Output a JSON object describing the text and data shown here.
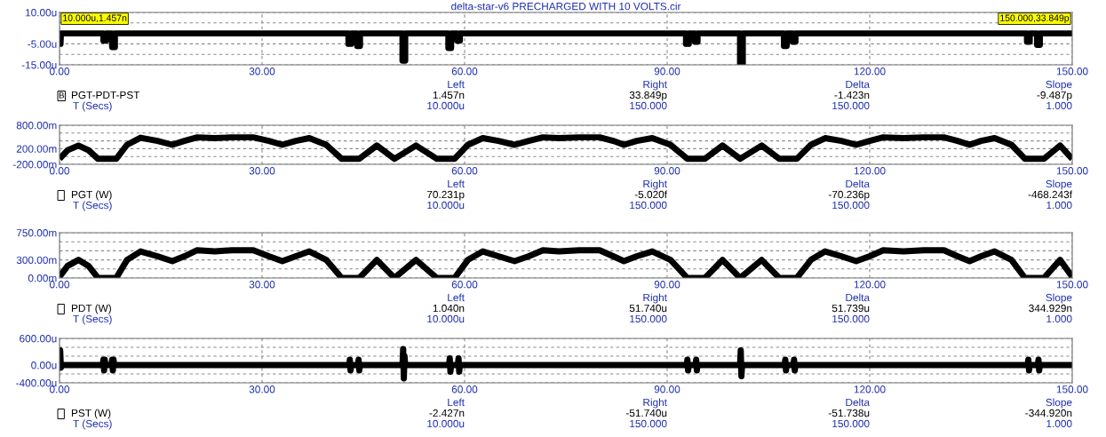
{
  "chart_data": [
    {
      "type": "line",
      "title": "delta-star-v6 PRECHARGED WITH 10 VOLTS.cir",
      "xlim": [
        0,
        150
      ],
      "ylim": [
        -15,
        10
      ],
      "grid": true,
      "xticks": [
        {
          "value": 0,
          "label": "0.00"
        },
        {
          "value": 30,
          "label": "30.00"
        },
        {
          "value": 60,
          "label": "60.00"
        },
        {
          "value": 90,
          "label": "90.00"
        },
        {
          "value": 120,
          "label": "120.00"
        },
        {
          "value": 150,
          "label": "150.00"
        }
      ],
      "yticks": [
        {
          "value": 10,
          "label": "10.00u"
        },
        {
          "value": 5,
          "label": null
        },
        {
          "value": -5,
          "label": "-5.00u"
        },
        {
          "value": -10,
          "label": null
        },
        {
          "value": -15,
          "label": "-15.00u"
        }
      ],
      "series": [
        {
          "color": "#000000",
          "x": [
            0,
            0.05,
            0.15,
            0.2,
            6.5,
            6.5,
            6.9,
            6.9,
            7.8,
            7.8,
            8.2,
            8.2,
            42.8,
            42.8,
            43.2,
            43.2,
            44.1,
            44.1,
            44.5,
            44.5,
            50.8,
            50.8,
            51.2,
            51.2,
            57.6,
            57.6,
            58,
            58,
            58.9,
            58.9,
            59.3,
            59.3,
            92.8,
            92.8,
            93.2,
            93.2,
            94.1,
            94.1,
            94.5,
            94.5,
            100.8,
            100.8,
            101.2,
            101.2,
            107.3,
            107.3,
            107.7,
            107.7,
            108.6,
            108.6,
            109,
            109,
            143.3,
            143.3,
            143.7,
            143.7,
            144.8,
            144.8,
            145.2,
            145.2,
            150
          ],
          "values": [
            0,
            -5,
            -5,
            0,
            0,
            -3.5,
            -3.5,
            0,
            0,
            -6.5,
            -6.5,
            0,
            0,
            -5,
            -5,
            0,
            0,
            -6,
            -6,
            0,
            0,
            -13,
            -13,
            0,
            0,
            -7,
            -7,
            0,
            0,
            -3.5,
            -3.5,
            0,
            0,
            -5,
            -5,
            0,
            0,
            -4,
            -4,
            0,
            0,
            -15,
            -15,
            0,
            0,
            -6,
            -6,
            0,
            0,
            -4,
            -4,
            0,
            0,
            -4,
            -4,
            0,
            0,
            -5.5,
            -5.5,
            0,
            0
          ]
        }
      ],
      "annotations": [
        "10.000u,1.457n",
        "150.000,33.849p",
        "B",
        "Left",
        "Right",
        "Delta",
        "Slope",
        "PGT-PDT-PST",
        "1.457n",
        "33.849p",
        "-1.423n",
        "-9.487p",
        "T (Secs)",
        "10.000u",
        "150.000",
        "150.000",
        "1.000"
      ]
    },
    {
      "type": "line",
      "xlim": [
        0,
        150
      ],
      "ylim": [
        -200,
        800
      ],
      "grid": true,
      "xticks": [
        {
          "value": 0,
          "label": "0.00"
        },
        {
          "value": 30,
          "label": "30.00"
        },
        {
          "value": 60,
          "label": "60.00"
        },
        {
          "value": 90,
          "label": "90.00"
        },
        {
          "value": 120,
          "label": "120.00"
        },
        {
          "value": 150,
          "label": "150.00"
        }
      ],
      "yticks": [
        {
          "value": 800,
          "label": "800.00m"
        },
        {
          "value": 600,
          "label": null
        },
        {
          "value": 400,
          "label": null
        },
        {
          "value": 200,
          "label": "200.00m"
        },
        {
          "value": 0,
          "label": null
        },
        {
          "value": -200,
          "label": "-200.00m"
        }
      ],
      "series": [
        {
          "color": "#000000",
          "x": [
            0,
            1.2,
            2.8,
            4.3,
            5.7,
            8.4,
            10,
            12,
            14.5,
            16.7,
            18.5,
            20.4,
            23,
            25.5,
            28.7,
            31,
            33,
            35,
            37,
            39.5,
            41.8,
            44.4,
            47,
            49.6,
            52.8,
            55.9,
            58.5,
            60.5,
            62.7,
            65,
            67.4,
            69.5,
            71.6,
            74,
            77,
            80,
            82,
            83.6,
            85.5,
            87.8,
            90.5,
            93,
            95.6,
            98.2,
            100.8,
            104,
            106.6,
            109.2,
            111.3,
            113.4,
            115.8,
            118,
            120,
            122,
            125,
            128,
            131,
            133,
            134.8,
            136.5,
            138.5,
            141,
            143,
            145.8,
            148.2,
            150
          ],
          "values": [
            -60,
            160,
            280,
            160,
            -60,
            -60,
            300,
            480,
            400,
            300,
            400,
            490,
            470,
            490,
            490,
            400,
            300,
            400,
            470,
            300,
            -60,
            -60,
            280,
            -60,
            280,
            -60,
            -60,
            300,
            470,
            400,
            300,
            400,
            490,
            470,
            490,
            490,
            400,
            300,
            400,
            470,
            300,
            -60,
            -60,
            280,
            -60,
            280,
            -60,
            -60,
            300,
            470,
            400,
            300,
            400,
            490,
            470,
            490,
            490,
            400,
            300,
            400,
            470,
            300,
            -60,
            -60,
            280,
            -60
          ]
        }
      ],
      "annotations": [
        "Left",
        "Right",
        "Delta",
        "Slope",
        "PGT (W)",
        "70.231p",
        "-5.020f",
        "-70.236p",
        "-468.243f",
        "T (Secs)",
        "10.000u",
        "150.000",
        "150.000",
        "1.000"
      ]
    },
    {
      "type": "line",
      "xlim": [
        0,
        150
      ],
      "ylim": [
        0,
        750
      ],
      "grid": true,
      "xticks": [
        {
          "value": 0,
          "label": "0.00"
        },
        {
          "value": 30,
          "label": "30.00"
        },
        {
          "value": 60,
          "label": "60.00"
        },
        {
          "value": 90,
          "label": "90.00"
        },
        {
          "value": 120,
          "label": "120.00"
        },
        {
          "value": 150,
          "label": "150.00"
        }
      ],
      "yticks": [
        {
          "value": 750,
          "label": "750.00m"
        },
        {
          "value": 600,
          "label": null
        },
        {
          "value": 450,
          "label": null
        },
        {
          "value": 300,
          "label": "300.00m"
        },
        {
          "value": 150,
          "label": null
        },
        {
          "value": 0,
          "label": "0.00m"
        }
      ],
      "series": [
        {
          "color": "#000000",
          "x": [
            0,
            1.2,
            2.8,
            4.3,
            5.7,
            8.4,
            10,
            12,
            14.5,
            16.7,
            18.5,
            20.4,
            23,
            25.5,
            28.7,
            31,
            33,
            35,
            37,
            39.5,
            41.8,
            44.4,
            47,
            49.6,
            52.8,
            55.9,
            58.5,
            60.5,
            62.7,
            65,
            67.4,
            69.5,
            71.6,
            74,
            77,
            80,
            82,
            83.6,
            85.5,
            87.8,
            90.5,
            93,
            95.6,
            98.2,
            100.8,
            104,
            106.6,
            109.2,
            111.3,
            113.4,
            115.8,
            118,
            120,
            122,
            125,
            128,
            131,
            133,
            134.8,
            136.5,
            138.5,
            141,
            143,
            145.8,
            148.2,
            150
          ],
          "values": [
            20,
            200,
            300,
            200,
            0,
            0,
            300,
            440,
            360,
            280,
            360,
            460,
            440,
            460,
            460,
            360,
            280,
            360,
            440,
            300,
            0,
            0,
            300,
            0,
            300,
            0,
            0,
            300,
            440,
            360,
            280,
            360,
            460,
            440,
            460,
            460,
            360,
            280,
            360,
            440,
            300,
            0,
            0,
            300,
            0,
            300,
            0,
            0,
            300,
            440,
            360,
            280,
            360,
            460,
            440,
            460,
            460,
            360,
            280,
            360,
            440,
            300,
            0,
            0,
            300,
            20
          ]
        }
      ],
      "annotations": [
        "Left",
        "Right",
        "Delta",
        "Slope",
        "PDT (W)",
        "1.040n",
        "51.740u",
        "51.739u",
        "344.929n",
        "T (Secs)",
        "10.000u",
        "150.000",
        "150.000",
        "1.000"
      ]
    },
    {
      "type": "line",
      "xlim": [
        0,
        150
      ],
      "ylim": [
        -400,
        600
      ],
      "grid": true,
      "xticks": [
        {
          "value": 0,
          "label": "0.00"
        },
        {
          "value": 30,
          "label": "30.00"
        },
        {
          "value": 60,
          "label": "60.00"
        },
        {
          "value": 90,
          "label": "90.00"
        },
        {
          "value": 120,
          "label": "120.00"
        },
        {
          "value": 150,
          "label": "150.00"
        }
      ],
      "yticks": [
        {
          "value": 600,
          "label": "600.00u"
        },
        {
          "value": 400,
          "label": null
        },
        {
          "value": 200,
          "label": null
        },
        {
          "value": 0,
          "label": "0.00u"
        },
        {
          "value": -200,
          "label": null
        },
        {
          "value": -400,
          "label": "-400.00u"
        }
      ],
      "series": [
        {
          "color": "#000000",
          "x": [
            0,
            0.1,
            0.2,
            0.4,
            6.4,
            6.5,
            6.6,
            6.7,
            6.8,
            7.7,
            7.8,
            7.9,
            8.0,
            8.1,
            42.9,
            43.0,
            43.1,
            43.2,
            44.2,
            44.3,
            44.4,
            44.5,
            50.8,
            50.9,
            51.0,
            51.1,
            51.2,
            57.7,
            57.8,
            57.9,
            58.0,
            59.0,
            59.1,
            59.2,
            59.3,
            92.9,
            93.0,
            93.1,
            93.2,
            94.2,
            94.3,
            94.4,
            94.5,
            100.8,
            100.9,
            101.0,
            101.1,
            107.4,
            107.5,
            107.6,
            107.7,
            108.7,
            108.8,
            108.9,
            109.0,
            143.4,
            143.5,
            143.6,
            143.7,
            144.9,
            145.0,
            145.1,
            145.2,
            150
          ],
          "values": [
            0,
            330,
            -60,
            0,
            0,
            120,
            -120,
            120,
            0,
            0,
            120,
            -120,
            120,
            0,
            0,
            120,
            -120,
            0,
            0,
            120,
            -120,
            0,
            0,
            360,
            -300,
            200,
            0,
            0,
            150,
            -150,
            0,
            0,
            150,
            -150,
            0,
            0,
            120,
            -120,
            0,
            0,
            120,
            -120,
            0,
            0,
            330,
            -250,
            0,
            0,
            120,
            -120,
            0,
            0,
            120,
            -120,
            0,
            0,
            120,
            -120,
            0,
            0,
            120,
            -120,
            0,
            0
          ]
        }
      ],
      "annotations": [
        "Left",
        "Right",
        "Delta",
        "Slope",
        "PST (W)",
        "-2.427n",
        "-51.740u",
        "-51.738u",
        "-344.920n",
        "T (Secs)",
        "10.000u",
        "150.000",
        "150.000",
        "1.000"
      ]
    }
  ]
}
